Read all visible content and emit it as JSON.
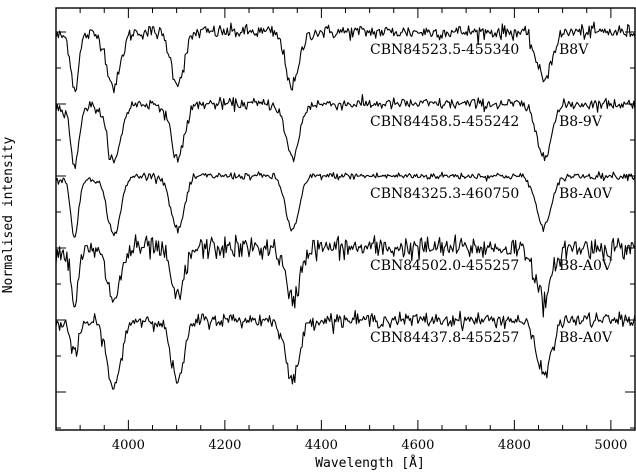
{
  "chart_data": {
    "type": "line",
    "title": "",
    "xlabel": "Wavelength [Å]",
    "ylabel": "Normalised intensity",
    "xlim": [
      3850,
      5050
    ],
    "x_ticks": [
      4000,
      4200,
      4400,
      4600,
      4800,
      5000
    ],
    "y_tick_labels_shown": false,
    "absorption_lines_angstrom": [
      3889,
      3970,
      4102,
      4340,
      4861
    ],
    "series": [
      {
        "name": "CBN84523.5-455340",
        "spectral_type": "B8V",
        "offset": 4.0,
        "line_depths": [
          0.75,
          0.75,
          0.7,
          0.75,
          0.65
        ],
        "noise": 0.05
      },
      {
        "name": "CBN84458.5-455242",
        "spectral_type": "B8-9V",
        "offset": 3.0,
        "line_depths": [
          0.85,
          0.8,
          0.75,
          0.75,
          0.7
        ],
        "noise": 0.04
      },
      {
        "name": "CBN84325.3-460750",
        "spectral_type": "B8-A0V",
        "offset": 2.0,
        "line_depths": [
          0.8,
          0.8,
          0.75,
          0.75,
          0.7
        ],
        "noise": 0.025
      },
      {
        "name": "CBN84502.0-455257",
        "spectral_type": "B8-A0V",
        "offset": 1.0,
        "line_depths": [
          0.7,
          0.7,
          0.7,
          0.75,
          0.75
        ],
        "noise": 0.08
      },
      {
        "name": "CBN84437.8-455257",
        "spectral_type": "B8-A0V",
        "offset": 0.0,
        "line_depths": [
          0.45,
          0.95,
          0.85,
          0.85,
          0.75
        ],
        "noise": 0.05
      }
    ]
  }
}
